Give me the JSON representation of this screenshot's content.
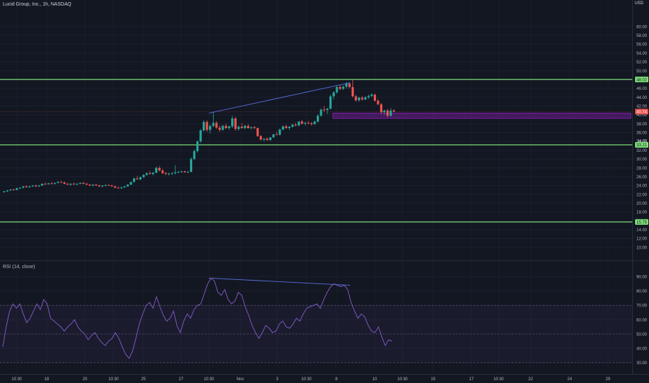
{
  "header": {
    "symbol_title": "Lucid Group, Inc., 1h, NASDAQ",
    "currency": "USD",
    "rsi_title": "RSI (14, close)"
  },
  "colors": {
    "background": "#131722",
    "up": "#26a69a",
    "down": "#ef5350",
    "level_line": "#7ee07a",
    "zone": "#7b1fa2",
    "rsi_line": "#7e57c2",
    "trend_line": "#5b6ee1",
    "axis_text": "#b2b5be"
  },
  "chart_data": [
    {
      "type": "candlestick",
      "title": "Lucid Group, Inc., 1h, NASDAQ",
      "ylim": [
        9,
        62
      ],
      "y_ticks": [
        10,
        12,
        14,
        16,
        18,
        20,
        22,
        24,
        26,
        28,
        30,
        32,
        34,
        36,
        38,
        40,
        42,
        44,
        46,
        48,
        50,
        52,
        54,
        56,
        58,
        60
      ],
      "x_tick_labels": [
        "10:30",
        "18",
        "20",
        "10:30",
        "25",
        "27",
        "10:30",
        "Nov",
        "3",
        "10:30",
        "8",
        "10",
        "10:30",
        "15",
        "17",
        "10:30",
        "22",
        "24",
        "29"
      ],
      "horizontal_levels": [
        {
          "price": 48.02,
          "label": "48.02"
        },
        {
          "price": 33.21,
          "label": "33.21"
        },
        {
          "price": 15.75,
          "label": "15.75"
        }
      ],
      "last_price": {
        "price": 40.74,
        "label": "40.74"
      },
      "minor_price_label": "34.20",
      "zone": {
        "from": 39.2,
        "to": 40.4
      },
      "trend_line": {
        "from_price": 40.4,
        "to_price": 47.3
      },
      "candles": [
        [
          22.5,
          22.8,
          22.4,
          22.7
        ],
        [
          22.7,
          23.0,
          22.5,
          22.9
        ],
        [
          22.9,
          23.2,
          22.8,
          23.1
        ],
        [
          23.1,
          23.3,
          22.9,
          23.0
        ],
        [
          23.0,
          23.5,
          22.9,
          23.4
        ],
        [
          23.4,
          23.6,
          23.2,
          23.5
        ],
        [
          23.5,
          23.9,
          23.4,
          23.8
        ],
        [
          23.8,
          24.0,
          23.5,
          23.6
        ],
        [
          23.6,
          23.9,
          23.5,
          23.8
        ],
        [
          23.8,
          24.1,
          23.7,
          24.0
        ],
        [
          24.0,
          24.2,
          23.7,
          23.8
        ],
        [
          23.8,
          24.1,
          23.7,
          24.0
        ],
        [
          24.0,
          24.5,
          23.9,
          24.4
        ],
        [
          24.4,
          24.7,
          24.2,
          24.3
        ],
        [
          24.3,
          24.6,
          24.2,
          24.5
        ],
        [
          24.5,
          24.8,
          24.3,
          24.4
        ],
        [
          24.4,
          24.7,
          24.2,
          24.6
        ],
        [
          24.6,
          25.0,
          24.5,
          24.8
        ],
        [
          24.8,
          25.1,
          24.6,
          24.7
        ],
        [
          24.7,
          24.9,
          24.3,
          24.4
        ],
        [
          24.4,
          24.6,
          24.1,
          24.2
        ],
        [
          24.2,
          24.5,
          24.0,
          24.4
        ],
        [
          24.4,
          24.7,
          24.2,
          24.3
        ],
        [
          24.3,
          24.5,
          24.1,
          24.4
        ],
        [
          24.4,
          24.7,
          24.3,
          24.6
        ],
        [
          24.6,
          24.8,
          24.3,
          24.4
        ],
        [
          24.4,
          24.6,
          24.1,
          24.2
        ],
        [
          24.2,
          24.4,
          23.9,
          24.0
        ],
        [
          24.0,
          24.3,
          23.8,
          24.2
        ],
        [
          24.2,
          24.4,
          23.9,
          24.0
        ],
        [
          24.0,
          24.2,
          23.7,
          23.8
        ],
        [
          23.8,
          24.1,
          23.6,
          24.0
        ],
        [
          24.0,
          24.3,
          23.8,
          24.1
        ],
        [
          24.1,
          24.3,
          23.9,
          24.0
        ],
        [
          24.0,
          24.2,
          23.7,
          23.8
        ],
        [
          23.8,
          24.0,
          23.4,
          23.5
        ],
        [
          23.5,
          23.8,
          23.3,
          23.4
        ],
        [
          23.4,
          23.7,
          23.2,
          23.6
        ],
        [
          23.6,
          23.9,
          23.4,
          23.8
        ],
        [
          23.8,
          24.3,
          23.7,
          24.2
        ],
        [
          24.2,
          24.9,
          24.1,
          24.8
        ],
        [
          24.8,
          25.8,
          24.7,
          25.6
        ],
        [
          25.6,
          26.2,
          25.3,
          25.4
        ],
        [
          25.4,
          26.0,
          25.2,
          25.9
        ],
        [
          25.9,
          26.6,
          25.7,
          26.4
        ],
        [
          26.4,
          27.0,
          26.2,
          26.8
        ],
        [
          26.8,
          27.3,
          26.5,
          26.6
        ],
        [
          26.6,
          27.1,
          26.3,
          26.9
        ],
        [
          26.9,
          28.3,
          26.8,
          28.0
        ],
        [
          28.0,
          28.4,
          27.2,
          27.4
        ],
        [
          27.4,
          27.8,
          26.6,
          26.8
        ],
        [
          26.8,
          27.1,
          26.4,
          26.6
        ],
        [
          26.6,
          26.9,
          26.3,
          26.7
        ],
        [
          26.7,
          27.0,
          26.4,
          26.8
        ],
        [
          26.8,
          28.6,
          26.5,
          27.0
        ],
        [
          27.0,
          27.3,
          26.8,
          27.1
        ],
        [
          27.1,
          27.4,
          26.9,
          27.2
        ],
        [
          27.2,
          27.4,
          26.9,
          27.0
        ],
        [
          27.0,
          27.3,
          26.8,
          27.1
        ],
        [
          27.1,
          30.4,
          27.0,
          30.0
        ],
        [
          30.0,
          32.2,
          29.8,
          31.8
        ],
        [
          31.8,
          34.2,
          31.5,
          34.0
        ],
        [
          34.0,
          36.8,
          33.6,
          36.5
        ],
        [
          36.5,
          38.8,
          36.2,
          38.4
        ],
        [
          38.4,
          38.8,
          36.2,
          36.6
        ],
        [
          36.6,
          37.8,
          35.8,
          37.5
        ],
        [
          37.5,
          40.8,
          37.2,
          38.2
        ],
        [
          38.2,
          38.6,
          36.8,
          37.1
        ],
        [
          37.1,
          37.6,
          36.2,
          36.6
        ],
        [
          36.6,
          37.8,
          36.4,
          37.5
        ],
        [
          37.5,
          38.0,
          36.8,
          37.0
        ],
        [
          37.0,
          37.6,
          36.6,
          37.4
        ],
        [
          37.4,
          39.8,
          37.0,
          39.2
        ],
        [
          39.2,
          39.6,
          36.4,
          36.8
        ],
        [
          36.8,
          37.6,
          36.4,
          37.3
        ],
        [
          37.3,
          38.2,
          36.8,
          37.0
        ],
        [
          37.0,
          37.8,
          36.7,
          37.5
        ],
        [
          37.5,
          37.9,
          36.9,
          37.0
        ],
        [
          37.0,
          37.4,
          36.6,
          37.2
        ],
        [
          37.2,
          37.5,
          36.8,
          37.0
        ],
        [
          37.0,
          37.2,
          35.0,
          35.2
        ],
        [
          35.2,
          35.4,
          34.2,
          34.4
        ],
        [
          34.4,
          34.8,
          34.0,
          34.6
        ],
        [
          34.6,
          34.9,
          34.2,
          34.3
        ],
        [
          34.3,
          35.0,
          34.1,
          34.9
        ],
        [
          34.9,
          35.7,
          34.8,
          35.6
        ],
        [
          35.6,
          36.2,
          35.4,
          35.5
        ],
        [
          35.5,
          36.9,
          35.3,
          36.7
        ],
        [
          36.7,
          37.6,
          36.5,
          37.4
        ],
        [
          37.4,
          37.8,
          36.8,
          37.0
        ],
        [
          37.0,
          37.5,
          36.6,
          37.3
        ],
        [
          37.3,
          38.0,
          37.1,
          37.8
        ],
        [
          37.8,
          38.2,
          37.4,
          37.6
        ],
        [
          37.6,
          38.6,
          37.4,
          38.5
        ],
        [
          38.5,
          38.9,
          37.8,
          38.0
        ],
        [
          38.0,
          38.4,
          37.6,
          38.2
        ],
        [
          38.2,
          38.6,
          37.9,
          38.1
        ],
        [
          38.1,
          38.4,
          37.6,
          37.9
        ],
        [
          37.9,
          38.7,
          37.7,
          38.5
        ],
        [
          38.5,
          40.2,
          38.3,
          39.8
        ],
        [
          39.8,
          41.5,
          39.6,
          41.2
        ],
        [
          41.2,
          42.0,
          40.6,
          41.1
        ],
        [
          41.1,
          41.6,
          40.2,
          41.4
        ],
        [
          41.4,
          44.6,
          41.2,
          44.2
        ],
        [
          44.2,
          45.4,
          43.5,
          45.1
        ],
        [
          45.1,
          46.6,
          44.8,
          46.3
        ],
        [
          46.3,
          46.8,
          45.6,
          45.9
        ],
        [
          45.9,
          46.7,
          45.6,
          46.4
        ],
        [
          46.4,
          47.4,
          46.0,
          47.1
        ],
        [
          47.1,
          47.4,
          46.0,
          46.3
        ],
        [
          46.3,
          48.0,
          44.0,
          44.2
        ],
        [
          44.2,
          44.6,
          43.0,
          43.3
        ],
        [
          43.3,
          44.1,
          43.0,
          43.9
        ],
        [
          43.9,
          44.3,
          43.2,
          43.5
        ],
        [
          43.5,
          44.2,
          43.3,
          44.0
        ],
        [
          44.0,
          44.6,
          43.6,
          44.3
        ],
        [
          44.3,
          44.9,
          44.0,
          44.6
        ],
        [
          44.6,
          44.8,
          43.0,
          43.2
        ],
        [
          43.2,
          43.6,
          42.2,
          42.4
        ],
        [
          42.4,
          42.7,
          40.2,
          40.6
        ],
        [
          40.6,
          41.2,
          40.0,
          41.0
        ],
        [
          41.0,
          41.4,
          39.4,
          39.8
        ],
        [
          39.8,
          41.6,
          39.6,
          41.0
        ],
        [
          41.0,
          41.3,
          40.6,
          40.74
        ]
      ]
    },
    {
      "type": "line",
      "title": "RSI (14, close)",
      "ylim": [
        28,
        95
      ],
      "y_ticks": [
        30,
        40,
        50,
        60,
        70,
        80,
        90
      ],
      "bands": [
        70,
        30
      ],
      "trend_line": {
        "from_value": 89,
        "to_value": 84
      },
      "values": [
        41,
        55,
        66,
        71,
        68,
        71,
        64,
        58,
        61,
        66,
        71,
        67,
        74,
        71,
        61,
        59,
        57,
        55,
        52,
        55,
        57,
        60,
        55,
        52,
        50,
        46,
        49,
        51,
        47,
        44,
        42,
        45,
        47,
        51,
        47,
        41,
        36,
        33,
        38,
        47,
        57,
        64,
        70,
        72,
        68,
        76,
        69,
        63,
        59,
        61,
        66,
        56,
        51,
        59,
        64,
        61,
        67,
        70,
        71,
        78,
        85,
        89,
        87,
        79,
        77,
        81,
        74,
        71,
        73,
        79,
        77,
        69,
        63,
        56,
        51,
        47,
        51,
        56,
        54,
        51,
        52,
        57,
        59,
        55,
        54,
        57,
        61,
        59,
        64,
        68,
        69,
        70,
        71,
        68,
        74,
        79,
        83,
        85,
        84,
        83,
        84,
        81,
        72,
        66,
        61,
        64,
        62,
        56,
        52,
        51,
        55,
        48,
        42,
        46,
        45
      ]
    }
  ]
}
